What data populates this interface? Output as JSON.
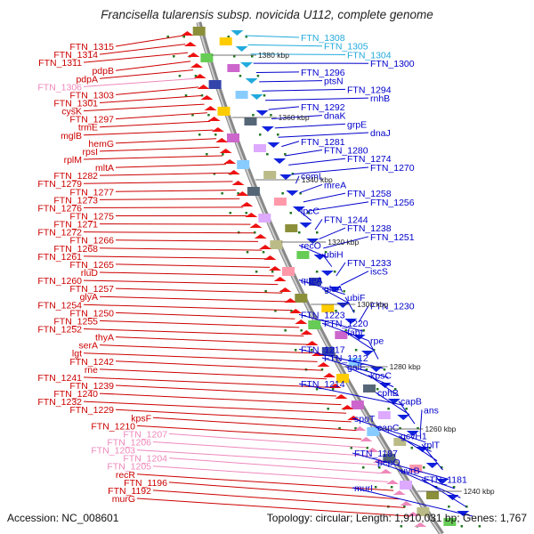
{
  "title": "Francisella tularensis subsp. novicida U112, complete genome",
  "footer": {
    "accession": "Accession: NC_008601",
    "summary": "Topology: circular; Length: 1,910,031 bp; Genes: 1,767"
  },
  "colors": {
    "left_strand": "#cc0000",
    "left_strand_light": "#ee88bb",
    "right_strand": "#0000cc",
    "right_strand_light": "#22aadd",
    "backbone": "#888888",
    "tick_marker": "#227722"
  },
  "scale_labels": [
    "1380 kbp",
    "1360 kbp",
    "1340 kbp",
    "1320 kbp",
    "1300 kbp",
    "1280 kbp",
    "1260 kbp",
    "1240 kbp"
  ],
  "left_labels": [
    {
      "text": "FTN_1315",
      "tone": "dark"
    },
    {
      "text": "FTN_1314",
      "tone": "dark"
    },
    {
      "text": "FTN_1311",
      "tone": "dark"
    },
    {
      "text": "pdpB",
      "tone": "dark"
    },
    {
      "text": "pdpA",
      "tone": "dark"
    },
    {
      "text": "FTN_1306",
      "tone": "light"
    },
    {
      "text": "FTN_1303",
      "tone": "dark"
    },
    {
      "text": "FTN_1301",
      "tone": "dark"
    },
    {
      "text": "cysK",
      "tone": "dark"
    },
    {
      "text": "FTN_1297",
      "tone": "dark"
    },
    {
      "text": "trmE",
      "tone": "dark"
    },
    {
      "text": "mglB",
      "tone": "dark"
    },
    {
      "text": "hemG",
      "tone": "dark"
    },
    {
      "text": "rpsI",
      "tone": "dark"
    },
    {
      "text": "rplM",
      "tone": "dark"
    },
    {
      "text": "mltA",
      "tone": "dark"
    },
    {
      "text": "FTN_1282",
      "tone": "dark"
    },
    {
      "text": "FTN_1279",
      "tone": "dark"
    },
    {
      "text": "FTN_1277",
      "tone": "dark"
    },
    {
      "text": "FTN_1273",
      "tone": "dark"
    },
    {
      "text": "FTN_1276",
      "tone": "dark"
    },
    {
      "text": "FTN_1275",
      "tone": "dark"
    },
    {
      "text": "FTN_1271",
      "tone": "dark"
    },
    {
      "text": "FTN_1272",
      "tone": "dark"
    },
    {
      "text": "FTN_1266",
      "tone": "dark"
    },
    {
      "text": "FTN_1268",
      "tone": "dark"
    },
    {
      "text": "FTN_1261",
      "tone": "dark"
    },
    {
      "text": "FTN_1265",
      "tone": "dark"
    },
    {
      "text": "rluD",
      "tone": "dark"
    },
    {
      "text": "FTN_1260",
      "tone": "dark"
    },
    {
      "text": "FTN_1257",
      "tone": "dark"
    },
    {
      "text": "glyA",
      "tone": "dark"
    },
    {
      "text": "FTN_1254",
      "tone": "dark"
    },
    {
      "text": "FTN_1250",
      "tone": "dark"
    },
    {
      "text": "FTN_1255",
      "tone": "dark"
    },
    {
      "text": "FTN_1252",
      "tone": "dark"
    },
    {
      "text": "thyA",
      "tone": "dark"
    },
    {
      "text": "serA",
      "tone": "dark"
    },
    {
      "text": "lgt",
      "tone": "dark"
    },
    {
      "text": "FTN_1242",
      "tone": "dark"
    },
    {
      "text": "rne",
      "tone": "dark"
    },
    {
      "text": "FTN_1241",
      "tone": "dark"
    },
    {
      "text": "FTN_1239",
      "tone": "dark"
    },
    {
      "text": "FTN_1240",
      "tone": "dark"
    },
    {
      "text": "FTN_1232",
      "tone": "dark"
    },
    {
      "text": "FTN_1229",
      "tone": "dark"
    },
    {
      "text": "kpsF",
      "tone": "dark"
    },
    {
      "text": "FTN_1210",
      "tone": "dark"
    },
    {
      "text": "FTN_1207",
      "tone": "light"
    },
    {
      "text": "FTN_1206",
      "tone": "light"
    },
    {
      "text": "FTN_1203",
      "tone": "light"
    },
    {
      "text": "FTN_1204",
      "tone": "light"
    },
    {
      "text": "FTN_1205",
      "tone": "light"
    },
    {
      "text": "recR",
      "tone": "dark"
    },
    {
      "text": "FTN_1196",
      "tone": "dark"
    },
    {
      "text": "FTN_1192",
      "tone": "dark"
    },
    {
      "text": "murG",
      "tone": "dark"
    }
  ],
  "right_labels": [
    {
      "text": "FTN_1308",
      "tone": "light"
    },
    {
      "text": "FTN_1305",
      "tone": "light"
    },
    {
      "text": "FTN_1304",
      "tone": "light"
    },
    {
      "text": "FTN_1300",
      "tone": "dark"
    },
    {
      "text": "FTN_1296",
      "tone": "dark"
    },
    {
      "text": "ptsN",
      "tone": "dark"
    },
    {
      "text": "FTN_1294",
      "tone": "dark"
    },
    {
      "text": "rnhB",
      "tone": "dark"
    },
    {
      "text": "FTN_1292",
      "tone": "dark"
    },
    {
      "text": "dnaK",
      "tone": "dark"
    },
    {
      "text": "grpE",
      "tone": "dark"
    },
    {
      "text": "dnaJ",
      "tone": "dark"
    },
    {
      "text": "FTN_1281",
      "tone": "dark"
    },
    {
      "text": "FTN_1280",
      "tone": "dark"
    },
    {
      "text": "FTN_1274",
      "tone": "dark"
    },
    {
      "text": "FTN_1270",
      "tone": "dark"
    },
    {
      "text": "comL",
      "tone": "dark"
    },
    {
      "text": "mreA",
      "tone": "dark"
    },
    {
      "text": "FTN_1258",
      "tone": "dark"
    },
    {
      "text": "FTN_1256",
      "tone": "dark"
    },
    {
      "text": "lpcC",
      "tone": "dark"
    },
    {
      "text": "FTN_1244",
      "tone": "dark"
    },
    {
      "text": "FTN_1238",
      "tone": "dark"
    },
    {
      "text": "FTN_1251",
      "tone": "dark"
    },
    {
      "text": "recO",
      "tone": "dark"
    },
    {
      "text": "ubiH",
      "tone": "dark"
    },
    {
      "text": "FTN_1233",
      "tone": "dark"
    },
    {
      "text": "iscS",
      "tone": "dark"
    },
    {
      "text": "queA",
      "tone": "dark"
    },
    {
      "text": "gloA",
      "tone": "dark"
    },
    {
      "text": "ubiF",
      "tone": "dark"
    },
    {
      "text": "FTN_1230",
      "tone": "dark"
    },
    {
      "text": "FTN_1223",
      "tone": "dark"
    },
    {
      "text": "FTN_1220",
      "tone": "dark"
    },
    {
      "text": "fabI",
      "tone": "dark"
    },
    {
      "text": "rpe",
      "tone": "dark"
    },
    {
      "text": "FTN_1217",
      "tone": "dark"
    },
    {
      "text": "FTN_1212",
      "tone": "dark"
    },
    {
      "text": "galE",
      "tone": "dark"
    },
    {
      "text": "kpsC",
      "tone": "dark"
    },
    {
      "text": "FTN_1214",
      "tone": "dark"
    },
    {
      "text": "cphB",
      "tone": "dark"
    },
    {
      "text": "capB",
      "tone": "dark"
    },
    {
      "text": "ans",
      "tone": "dark"
    },
    {
      "text": "spoT",
      "tone": "dark"
    },
    {
      "text": "capC",
      "tone": "dark"
    },
    {
      "text": "gcvH1",
      "tone": "dark"
    },
    {
      "text": "rplT",
      "tone": "dark"
    },
    {
      "text": "FTN_1187",
      "tone": "dark"
    },
    {
      "text": "pepO",
      "tone": "dark"
    },
    {
      "text": "uvrB",
      "tone": "dark"
    },
    {
      "text": "FTN_1181",
      "tone": "dark"
    },
    {
      "text": "murI",
      "tone": "dark"
    }
  ]
}
